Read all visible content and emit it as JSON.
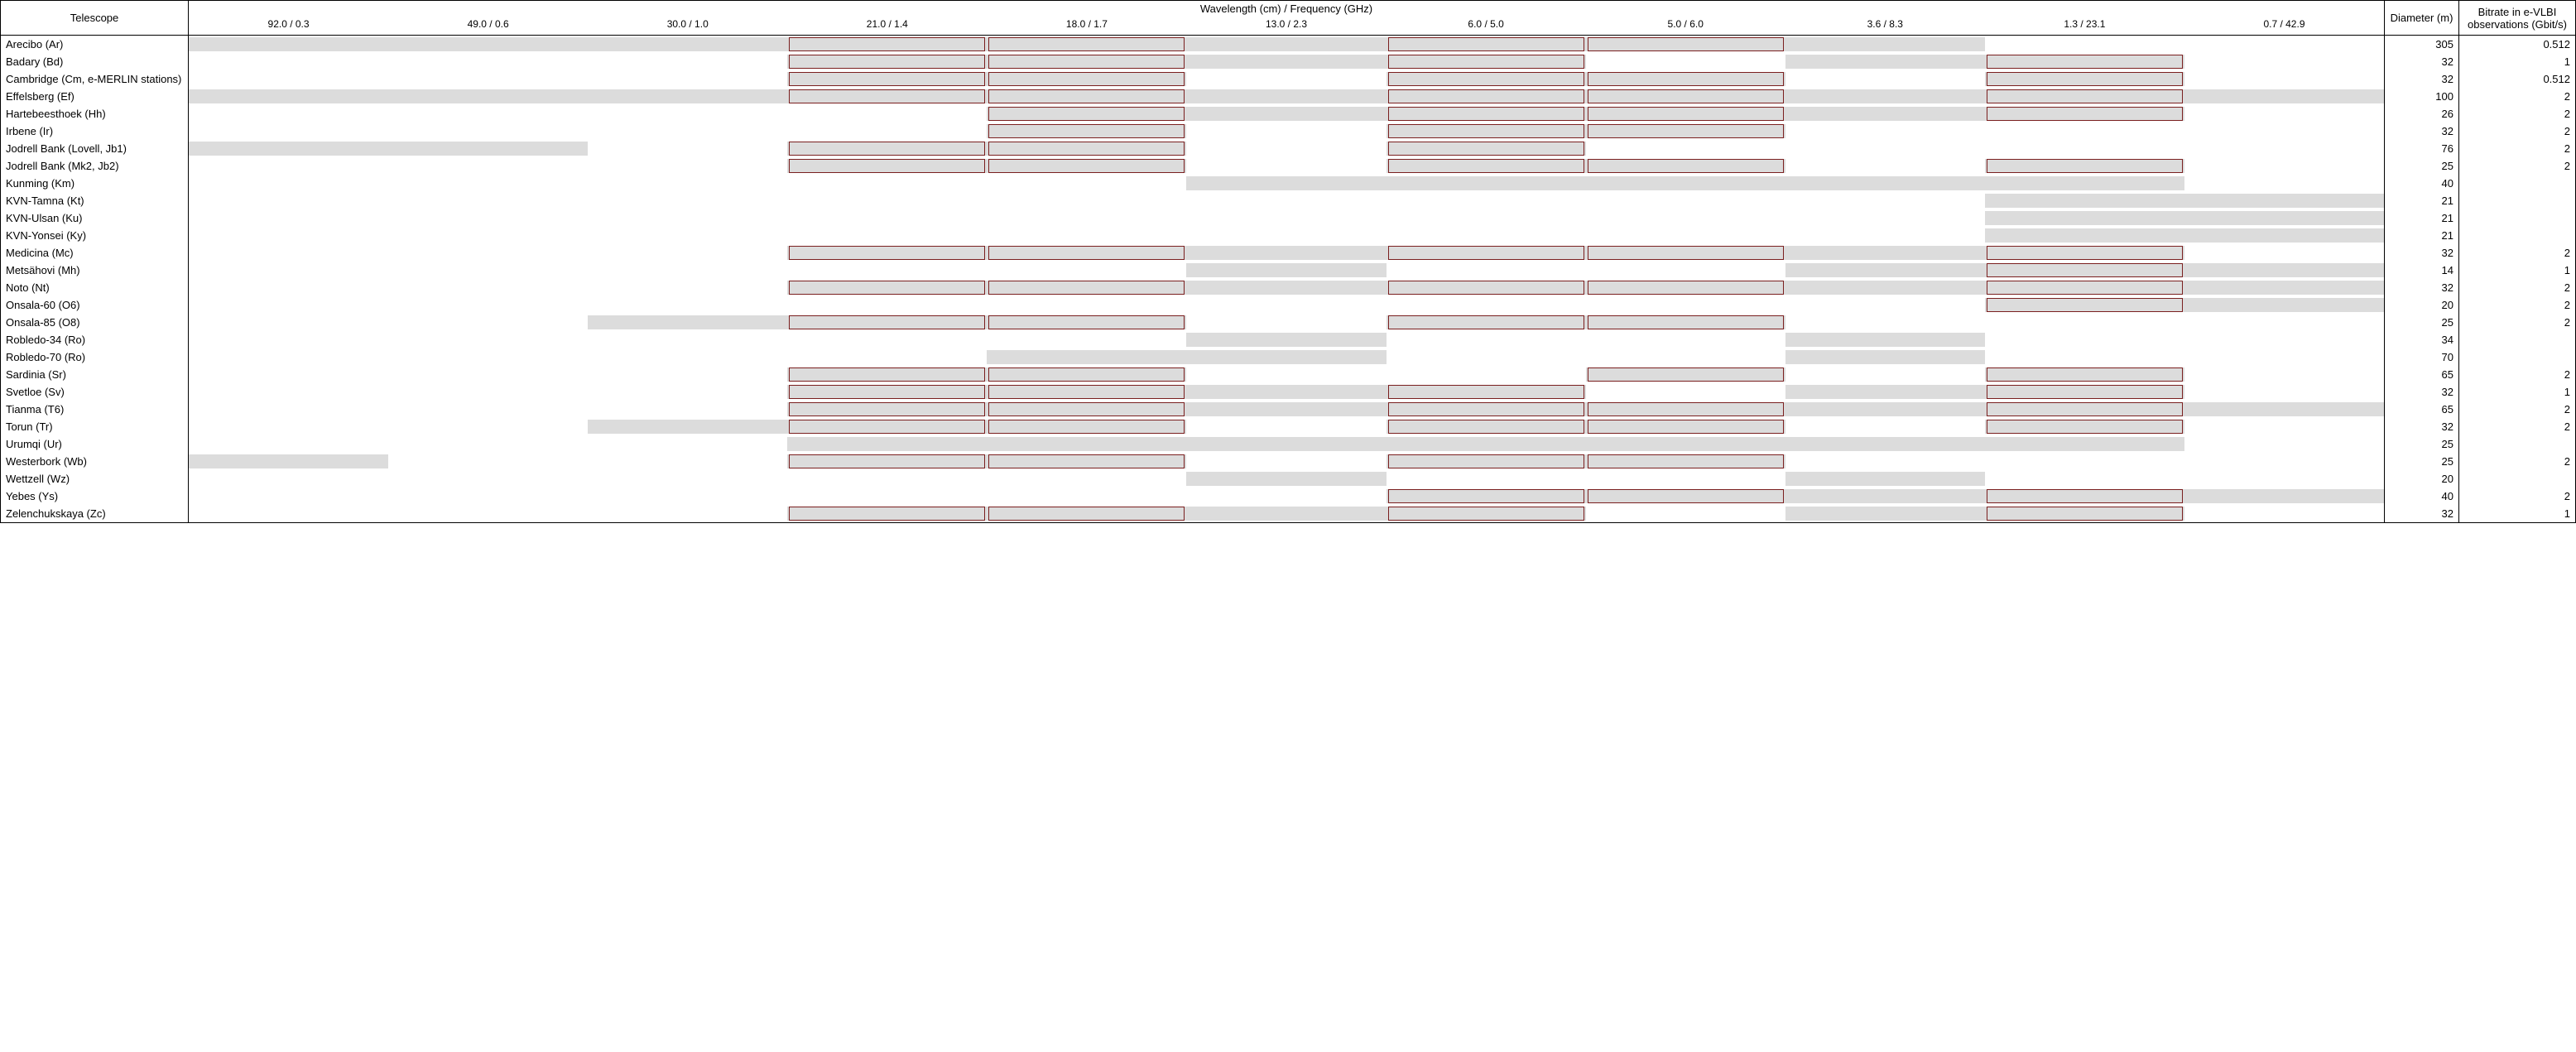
{
  "colors": {
    "gray_band": "#dcdcdc",
    "box_border": "#7a1f1f",
    "border": "#000000",
    "background": "#ffffff"
  },
  "header": {
    "telescope": "Telescope",
    "chart_title": "Wavelength (cm) / Frequency (GHz)",
    "diameter": "Diameter (m)",
    "bitrate": "Bitrate in e-VLBI observations (Gbit/s)"
  },
  "bands": [
    "92.0 / 0.3",
    "49.0 / 0.6",
    "30.0 / 1.0",
    "21.0 / 1.4",
    "18.0 / 1.7",
    "13.0 / 2.3",
    "6.0 / 5.0",
    "5.0 / 6.0",
    "3.6 / 8.3",
    "1.3 / 23.1",
    "0.7 / 42.9"
  ],
  "rows": [
    {
      "name": "Arecibo (Ar)",
      "diameter": "305",
      "bitrate": "0.512",
      "gray": [
        0,
        1,
        2,
        3,
        4,
        5,
        6,
        7,
        8
      ],
      "box": [
        3,
        4,
        6,
        7
      ]
    },
    {
      "name": "Badary (Bd)",
      "diameter": "32",
      "bitrate": "1",
      "gray": [
        3,
        4,
        5,
        6,
        8,
        9
      ],
      "box": [
        3,
        4,
        6,
        9
      ]
    },
    {
      "name": "Cambridge (Cm, e-MERLIN stations)",
      "diameter": "32",
      "bitrate": "0.512",
      "gray": [
        3,
        4,
        6,
        7,
        9
      ],
      "box": [
        3,
        4,
        6,
        7,
        9
      ]
    },
    {
      "name": "Effelsberg (Ef)",
      "diameter": "100",
      "bitrate": "2",
      "gray": [
        0,
        1,
        2,
        3,
        4,
        5,
        6,
        7,
        8,
        9,
        10
      ],
      "box": [
        3,
        4,
        6,
        7,
        9
      ]
    },
    {
      "name": "Hartebeesthoek (Hh)",
      "diameter": "26",
      "bitrate": "2",
      "gray": [
        4,
        5,
        6,
        7,
        8,
        9
      ],
      "box": [
        4,
        6,
        7,
        9
      ]
    },
    {
      "name": "Irbene (Ir)",
      "diameter": "32",
      "bitrate": "2",
      "gray": [
        4,
        6,
        7
      ],
      "box": [
        4,
        6,
        7
      ]
    },
    {
      "name": "Jodrell Bank (Lovell, Jb1)",
      "diameter": "76",
      "bitrate": "2",
      "gray": [
        0,
        1,
        3,
        4,
        6
      ],
      "box": [
        3,
        4,
        6
      ]
    },
    {
      "name": "Jodrell Bank (Mk2, Jb2)",
      "diameter": "25",
      "bitrate": "2",
      "gray": [
        3,
        4,
        6,
        7,
        9
      ],
      "box": [
        3,
        4,
        6,
        7,
        9
      ]
    },
    {
      "name": "Kunming (Km)",
      "diameter": "40",
      "bitrate": "",
      "gray": [
        5,
        6,
        7,
        8,
        9
      ],
      "box": []
    },
    {
      "name": "KVN-Tamna (Kt)",
      "diameter": "21",
      "bitrate": "",
      "gray": [
        9,
        10
      ],
      "box": []
    },
    {
      "name": "KVN-Ulsan (Ku)",
      "diameter": "21",
      "bitrate": "",
      "gray": [
        9,
        10
      ],
      "box": []
    },
    {
      "name": "KVN-Yonsei (Ky)",
      "diameter": "21",
      "bitrate": "",
      "gray": [
        9,
        10
      ],
      "box": []
    },
    {
      "name": "Medicina (Mc)",
      "diameter": "32",
      "bitrate": "2",
      "gray": [
        3,
        4,
        5,
        6,
        7,
        8,
        9
      ],
      "box": [
        3,
        4,
        6,
        7,
        9
      ]
    },
    {
      "name": "Metsähovi (Mh)",
      "diameter": "14",
      "bitrate": "1",
      "gray": [
        5,
        8,
        9,
        10
      ],
      "box": [
        9
      ]
    },
    {
      "name": "Noto (Nt)",
      "diameter": "32",
      "bitrate": "2",
      "gray": [
        3,
        4,
        5,
        6,
        7,
        8,
        9,
        10
      ],
      "box": [
        3,
        4,
        6,
        7,
        9
      ]
    },
    {
      "name": "Onsala-60 (O6)",
      "diameter": "20",
      "bitrate": "2",
      "gray": [
        9,
        10
      ],
      "box": [
        9
      ]
    },
    {
      "name": "Onsala-85 (O8)",
      "diameter": "25",
      "bitrate": "2",
      "gray": [
        2,
        3,
        4,
        6,
        7
      ],
      "box": [
        3,
        4,
        6,
        7
      ]
    },
    {
      "name": "Robledo-34 (Ro)",
      "diameter": "34",
      "bitrate": "",
      "gray": [
        5,
        8
      ],
      "box": []
    },
    {
      "name": "Robledo-70 (Ro)",
      "diameter": "70",
      "bitrate": "",
      "gray": [
        4,
        5,
        8
      ],
      "box": []
    },
    {
      "name": "Sardinia (Sr)",
      "diameter": "65",
      "bitrate": "2",
      "gray": [
        3,
        4,
        7,
        9
      ],
      "box": [
        3,
        4,
        7,
        9
      ]
    },
    {
      "name": "Svetloe (Sv)",
      "diameter": "32",
      "bitrate": "1",
      "gray": [
        3,
        4,
        5,
        6,
        8,
        9
      ],
      "box": [
        3,
        4,
        6,
        9
      ]
    },
    {
      "name": "Tianma (T6)",
      "diameter": "65",
      "bitrate": "2",
      "gray": [
        3,
        4,
        5,
        6,
        7,
        8,
        9,
        10
      ],
      "box": [
        3,
        4,
        6,
        7,
        9
      ]
    },
    {
      "name": "Torun (Tr)",
      "diameter": "32",
      "bitrate": "2",
      "gray": [
        2,
        3,
        4,
        6,
        7,
        9
      ],
      "box": [
        3,
        4,
        6,
        7,
        9
      ]
    },
    {
      "name": "Urumqi (Ur)",
      "diameter": "25",
      "bitrate": "",
      "gray": [
        3,
        4,
        5,
        6,
        7,
        8,
        9
      ],
      "box": []
    },
    {
      "name": "Westerbork (Wb)",
      "diameter": "25",
      "bitrate": "2",
      "gray": [
        0,
        3,
        4,
        6,
        7
      ],
      "box": [
        3,
        4,
        6,
        7
      ]
    },
    {
      "name": "Wettzell (Wz)",
      "diameter": "20",
      "bitrate": "",
      "gray": [
        5,
        8
      ],
      "box": []
    },
    {
      "name": "Yebes (Ys)",
      "diameter": "40",
      "bitrate": "2",
      "gray": [
        6,
        7,
        8,
        9,
        10
      ],
      "box": [
        6,
        7,
        9
      ]
    },
    {
      "name": "Zelenchukskaya (Zc)",
      "diameter": "32",
      "bitrate": "1",
      "gray": [
        3,
        4,
        5,
        6,
        8,
        9
      ],
      "box": [
        3,
        4,
        6,
        9
      ]
    }
  ]
}
